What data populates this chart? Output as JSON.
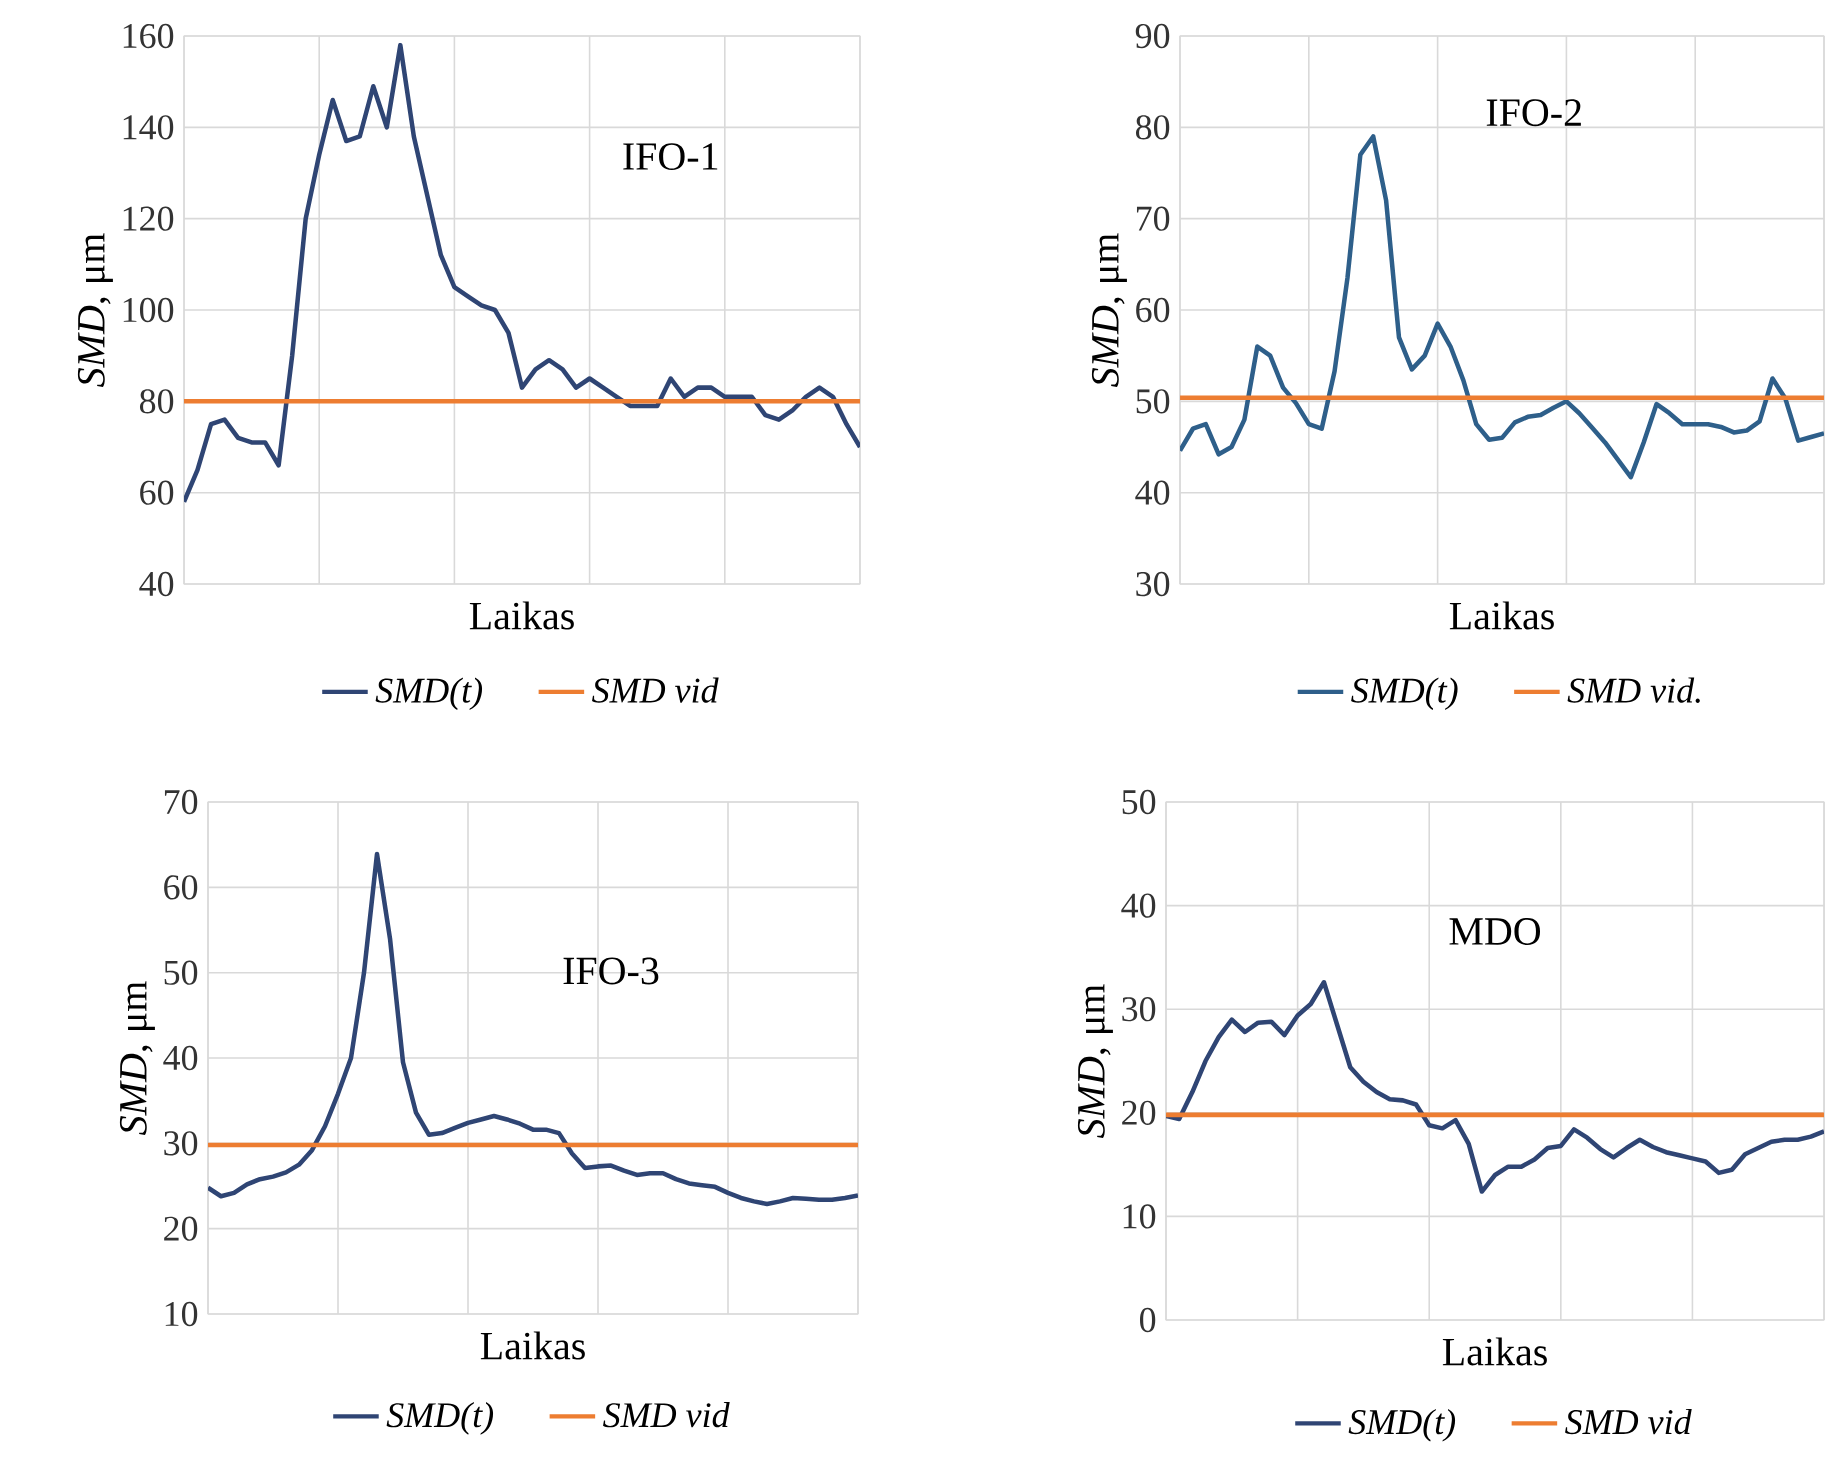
{
  "chart_data": [
    {
      "type": "line",
      "title": "IFO-1",
      "xlabel": "Laikas",
      "ylabel": "*SMD*, μm",
      "ylim": [
        40,
        160
      ],
      "yticks": [
        40,
        60,
        80,
        100,
        120,
        140,
        160
      ],
      "tick_labels": "y",
      "grid": true,
      "legend": "bottom",
      "categories": [
        null,
        null,
        null,
        null,
        null,
        null,
        null,
        null,
        null,
        null,
        null,
        null,
        null,
        null,
        null,
        null,
        null,
        null,
        null,
        null,
        null,
        null,
        null,
        null,
        null,
        null,
        null,
        null,
        null,
        null,
        null,
        null,
        null,
        null,
        null,
        null,
        null,
        null,
        null,
        null,
        null,
        null,
        null,
        null,
        null,
        null,
        null,
        null,
        null,
        null,
        null
      ],
      "series": [
        {
          "name": "SMD(t)",
          "color": "#2f4574",
          "values": [
            58,
            65,
            75,
            76,
            72,
            71,
            71,
            66,
            90,
            120,
            134,
            146,
            137,
            138,
            149,
            140,
            158,
            138,
            125,
            112,
            105,
            103,
            101,
            100,
            95,
            83,
            87,
            89,
            87,
            83,
            85,
            83,
            81,
            79,
            79,
            79,
            85,
            81,
            83,
            83,
            81,
            81,
            81,
            77,
            76,
            78,
            81,
            83,
            81,
            75,
            70
          ]
        }
      ],
      "ref_lines": [
        {
          "axis": "y",
          "value": 80,
          "label": "SMD vid",
          "color": "#ed7d31"
        }
      ]
    },
    {
      "type": "line",
      "title": "IFO-2",
      "xlabel": "Laikas",
      "ylabel": "*SMD*, μm",
      "ylim": [
        30,
        90
      ],
      "yticks": [
        30,
        40,
        50,
        60,
        70,
        80,
        90
      ],
      "tick_labels": "y",
      "grid": true,
      "legend": "bottom",
      "categories": [
        null,
        null,
        null,
        null,
        null,
        null,
        null,
        null,
        null,
        null,
        null,
        null,
        null,
        null,
        null,
        null,
        null,
        null,
        null,
        null,
        null,
        null,
        null,
        null,
        null,
        null,
        null,
        null,
        null,
        null,
        null,
        null,
        null,
        null,
        null,
        null,
        null,
        null,
        null,
        null,
        null,
        null,
        null,
        null,
        null,
        null,
        null,
        null,
        null,
        null,
        null
      ],
      "series": [
        {
          "name": "SMD(t)",
          "color": "#2e5f8a",
          "values": [
            44.6,
            47,
            47.5,
            44.2,
            45,
            48,
            56,
            55,
            51.5,
            49.8,
            47.5,
            47,
            53.3,
            63.5,
            77,
            79,
            72,
            57,
            53.5,
            55,
            58.5,
            56,
            52.3,
            47.5,
            45.8,
            46,
            47.7,
            48.3,
            48.5,
            49.3,
            50,
            48.7,
            47.1,
            45.5,
            43.6,
            41.7,
            45.5,
            49.7,
            48.7,
            47.5,
            47.5,
            47.5,
            47.2,
            46.6,
            46.8,
            47.8,
            52.5,
            50.3,
            45.7,
            46.1,
            46.5
          ]
        }
      ],
      "ref_lines": [
        {
          "axis": "y",
          "value": 50.4,
          "label": "SMD vid.",
          "color": "#ed7d31"
        }
      ]
    },
    {
      "type": "line",
      "title": "IFO-3",
      "xlabel": "Laikas",
      "ylabel": "*SMD*, μm",
      "ylim": [
        10,
        70
      ],
      "yticks": [
        10,
        20,
        30,
        40,
        50,
        60,
        70
      ],
      "tick_labels": "y",
      "grid": true,
      "legend": "bottom",
      "categories": [
        null,
        null,
        null,
        null,
        null,
        null,
        null,
        null,
        null,
        null,
        null,
        null,
        null,
        null,
        null,
        null,
        null,
        null,
        null,
        null,
        null,
        null,
        null,
        null,
        null,
        null,
        null,
        null,
        null,
        null,
        null,
        null,
        null,
        null,
        null,
        null,
        null,
        null,
        null,
        null,
        null,
        null,
        null,
        null,
        null,
        null,
        null,
        null,
        null,
        null,
        null
      ],
      "series": [
        {
          "name": "SMD(t)",
          "color": "#2f4574",
          "values": [
            24.8,
            23.8,
            24.2,
            25.2,
            25.8,
            26.1,
            26.6,
            27.5,
            29.2,
            32,
            35.8,
            40,
            50,
            63.9,
            54,
            39.5,
            33.6,
            31,
            31.2,
            31.8,
            32.4,
            32.8,
            33.2,
            32.8,
            32.3,
            31.6,
            31.6,
            31.2,
            28.8,
            27.1,
            27.3,
            27.4,
            26.8,
            26.3,
            26.5,
            26.5,
            25.8,
            25.3,
            25.1,
            24.9,
            24.2,
            23.6,
            23.2,
            22.9,
            23.2,
            23.6,
            23.5,
            23.4,
            23.4,
            23.6,
            23.9
          ]
        }
      ],
      "ref_lines": [
        {
          "axis": "y",
          "value": 29.8,
          "label": "SMD vid",
          "color": "#ed7d31"
        }
      ]
    },
    {
      "type": "line",
      "title": "MDO",
      "xlabel": "Laikas",
      "ylabel": "*SMD*, μm",
      "ylim": [
        0,
        50
      ],
      "yticks": [
        0,
        10,
        20,
        30,
        40,
        50
      ],
      "tick_labels": "y",
      "grid": true,
      "legend": "bottom",
      "categories": [
        null,
        null,
        null,
        null,
        null,
        null,
        null,
        null,
        null,
        null,
        null,
        null,
        null,
        null,
        null,
        null,
        null,
        null,
        null,
        null,
        null,
        null,
        null,
        null,
        null,
        null,
        null,
        null,
        null,
        null,
        null,
        null,
        null,
        null,
        null,
        null,
        null,
        null,
        null,
        null,
        null,
        null,
        null,
        null,
        null,
        null,
        null,
        null,
        null,
        null,
        null
      ],
      "series": [
        {
          "name": "SMD(t)",
          "color": "#2f4574",
          "values": [
            19.7,
            19.4,
            22,
            25,
            27.3,
            29,
            27.8,
            28.7,
            28.8,
            27.5,
            29.4,
            30.5,
            32.6,
            28.5,
            24.4,
            23,
            22,
            21.3,
            21.2,
            20.8,
            18.8,
            18.5,
            19.3,
            17,
            12.4,
            14,
            14.8,
            14.8,
            15.5,
            16.6,
            16.8,
            18.4,
            17.6,
            16.5,
            15.7,
            16.6,
            17.4,
            16.7,
            16.2,
            15.9,
            15.6,
            15.3,
            14.2,
            14.5,
            16,
            16.6,
            17.2,
            17.4,
            17.4,
            17.7,
            18.2
          ]
        }
      ],
      "ref_lines": [
        {
          "axis": "y",
          "value": 19.8,
          "label": "SMD vid",
          "color": "#ed7d31"
        }
      ]
    }
  ]
}
